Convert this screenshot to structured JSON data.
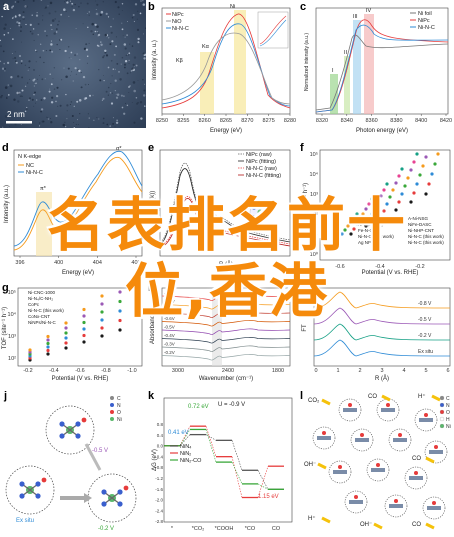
{
  "panels": {
    "a": {
      "label": "a",
      "scale_bar": "2 nm"
    },
    "b": {
      "label": "b",
      "xlabel": "Energy (eV)",
      "ylabel": "Intensity (a. u.)",
      "ticks": [
        "8250",
        "8255",
        "8260",
        "8265",
        "8270",
        "8275",
        "8280"
      ],
      "legend": [
        "NiPc",
        "NiO",
        "Ni-N-C"
      ],
      "annot": [
        "Kβ",
        "Kα",
        "Ni"
      ]
    },
    "c": {
      "label": "c",
      "xlabel": "Photon energy (eV)",
      "ylabel": "Normalized intensity (a.u.)",
      "ticks": [
        "8320",
        "8340",
        "8360",
        "8380",
        "8400",
        "8420"
      ],
      "legend": [
        "Ni foil",
        "NiPc",
        "Ni-N-C"
      ],
      "annot": [
        "I",
        "II",
        "III",
        "IV"
      ]
    },
    "d": {
      "label": "d",
      "title": "N K-edge",
      "xlabel": "Energy (eV)",
      "ylabel": "Intensity (a.u.)",
      "ticks": [
        "396",
        "400",
        "404",
        "408"
      ],
      "legend": [
        "NC",
        "Ni-N-C"
      ],
      "annot": [
        "σ*",
        "π*"
      ]
    },
    "e": {
      "label": "e",
      "xlabel": "R (Å)",
      "ylabel": "FT(k³χ(k))",
      "legend": [
        "NiPc (raw)",
        "NiPc (fitting)",
        "Ni-N-C (raw)",
        "Ni-N-C (fitting)"
      ]
    },
    "f": {
      "label": "f",
      "xlabel": "Potential (V vs. RHE)",
      "ylabel": "TOF (site⁻¹ h⁻¹)",
      "yticks": [
        "10⁵",
        "10⁴",
        "10³",
        "10²",
        "10¹",
        "10⁰"
      ],
      "xticks": [
        "-0.6",
        "-0.4",
        "-0.2"
      ],
      "legend_left": [
        "Ni-CNC-1000",
        "Ni-N₄/C-NH₂",
        "Fe-N-C",
        "Ni-N-C (this work)",
        "Ag NPs"
      ],
      "legend_right": [
        "A-Ni-NSG",
        "NiFe-DASC",
        "Ni-NHP-CNT",
        "Ni-N-C (this work)",
        "Ni-N-C (this work)"
      ]
    },
    "g": {
      "label": "g",
      "xlabel": "Potential (V vs. RHE)",
      "ylabel": "TOF (site⁻¹ h⁻¹)",
      "xticks": [
        "-0.2",
        "-0.4",
        "-0.6",
        "-0.8",
        "-1.0"
      ],
      "yticks": [
        "10⁵",
        "10⁴",
        "10³",
        "10²"
      ],
      "legend": [
        "Ni-CNC-1000",
        "Ni-N₄/C-NH₂",
        "CoPc",
        "Ni-N-C (this work)",
        "CoNx-CNT",
        "NiNPs/Ni-N-C"
      ]
    },
    "h": {
      "label": "h",
      "xlabel": "Wavenumber (cm⁻¹)",
      "ylabel": "Absorbance",
      "xticks": [
        "3000",
        "2400",
        "1800"
      ],
      "curves": [
        "-0.9V",
        "-0.8V",
        "-0.7V",
        "-0.6V",
        "-0.5V",
        "-0.4V",
        "-0.3V",
        "-0.2V"
      ]
    },
    "i": {
      "label": "i",
      "xlabel": "R (Å)",
      "ylabel": "FT",
      "xticks": [
        "0",
        "1",
        "2",
        "3",
        "4",
        "5",
        "6"
      ],
      "curves": [
        "-0.8 V",
        "-0.5 V",
        "-0.2 V",
        "Ex situ"
      ]
    },
    "j": {
      "label": "j",
      "texts": [
        "-0.5 V",
        "Ex situ",
        "-0.2 V"
      ],
      "legend": [
        "C",
        "N",
        "O",
        "Ni"
      ]
    },
    "k": {
      "label": "k",
      "title": "U = -0.9 V",
      "ylabel": "ΔG (eV)",
      "values": [
        "0.41 eV",
        "0.72 eV",
        "1.15 eV"
      ],
      "legend": [
        "NiN₄",
        "NiN₂",
        "NiN₂-CO"
      ],
      "xcats": [
        "*",
        "*CO₂",
        "*COOH",
        "*CO",
        "CO"
      ],
      "yticks": [
        "0.8",
        "0.4",
        "0.0",
        "-0.4",
        "-0.8",
        "-1.2",
        "-1.6",
        "-2.0",
        "-2.4",
        "-2.8"
      ]
    },
    "l": {
      "label": "l",
      "species": [
        "CO₂",
        "CO",
        "H⁺",
        "OH⁻",
        "CO",
        "H⁺",
        "OH⁻",
        "CO"
      ],
      "legend": [
        "C",
        "N",
        "O",
        "H",
        "Ni"
      ]
    }
  },
  "overlay": {
    "line1": "名表排名前十",
    "line2": "位,香港"
  },
  "colors": {
    "accent": "#f58a0b",
    "red": "#e63b3b",
    "blue": "#2e8bd6",
    "green": "#3aa83a"
  }
}
